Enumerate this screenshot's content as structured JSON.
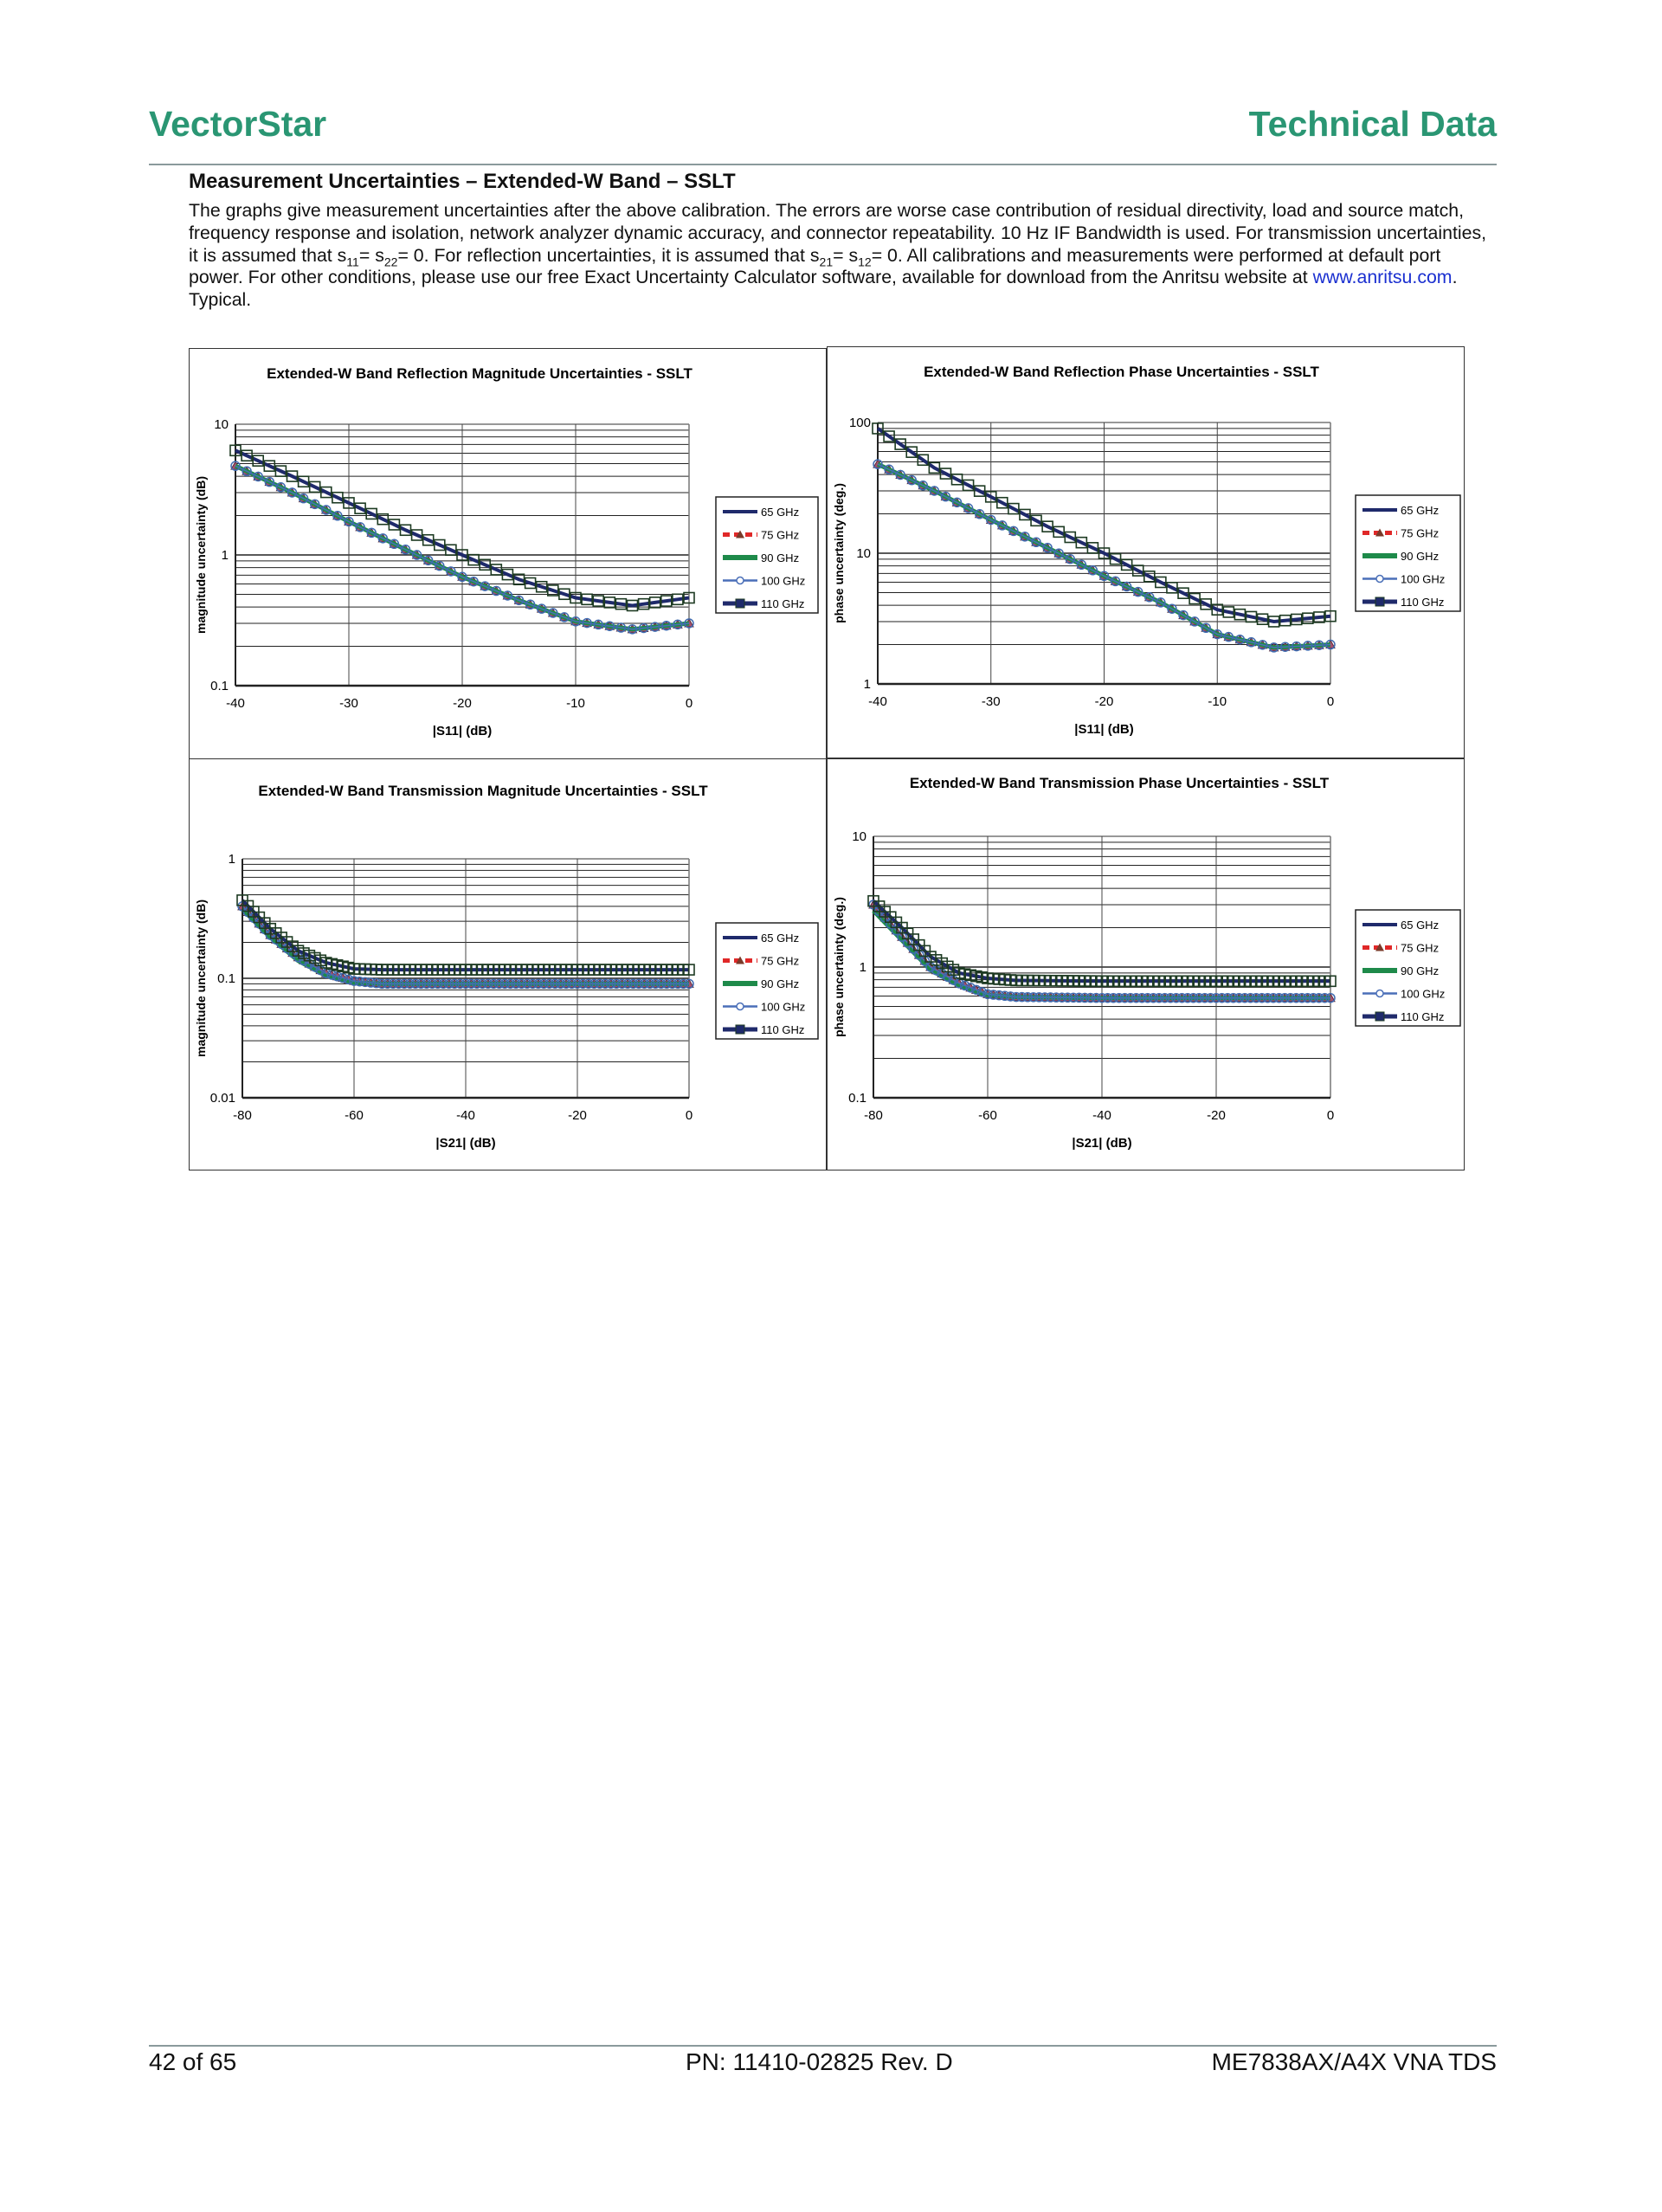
{
  "header": {
    "brand": "VectorStar",
    "section": "Technical Data"
  },
  "section_title": "Measurement Uncertainties – Extended-W Band – SSLT",
  "body": {
    "p1": "The graphs give measurement uncertainties after the above calibration. The errors are worse case contribution of residual directivity, load and source match, frequency response and isolation, network analyzer dynamic accuracy, and connector repeatability. 10 Hz IF Bandwidth is used. For transmission uncertainties, it is assumed that s",
    "sub11": "11",
    "eq1": "= s",
    "sub22": "22",
    "p2": "= 0. For reflection uncertainties, it is assumed that s",
    "sub21": "21",
    "eq2": "= s",
    "sub12": "12",
    "p3": "= 0. All calibrations and measurements were performed at default port power. For other conditions, please use our free Exact Uncertainty Calculator software, available for download from the Anritsu website at ",
    "link": "www.anritsu.com",
    "p4": ". Typical."
  },
  "footer": {
    "page": "42 of 65",
    "pn": "PN: 11410-02825 Rev. D",
    "doc": "ME7838AX/A4X VNA TDS"
  },
  "chart_data": [
    {
      "type": "line",
      "title": "Extended-W Band Reflection Magnitude Uncertainties - SSLT",
      "xlabel": "|S11| (dB)",
      "ylabel": "magnitude uncertainty (dB)",
      "xlim": [
        -40,
        0
      ],
      "ylim": [
        0.1,
        10
      ],
      "yscale": "log",
      "xticks": [
        "-40",
        "-30",
        "-20",
        "-10",
        "0"
      ],
      "yticks": [
        "0.1",
        "1",
        "10"
      ],
      "grid": true,
      "legend": "right",
      "x": [
        -40,
        -35,
        -30,
        -25,
        -20,
        -15,
        -10,
        -5,
        0
      ],
      "series": [
        {
          "name": "65 GHz",
          "color": "#1f2a6b",
          "values": [
            4.8,
            3.0,
            1.8,
            1.1,
            0.68,
            0.45,
            0.31,
            0.27,
            0.3
          ]
        },
        {
          "name": "75 GHz",
          "color": "#e02828",
          "values": [
            4.8,
            3.0,
            1.8,
            1.1,
            0.68,
            0.45,
            0.31,
            0.27,
            0.3
          ]
        },
        {
          "name": "90 GHz",
          "color": "#1e8a4a",
          "values": [
            4.8,
            3.0,
            1.8,
            1.1,
            0.68,
            0.45,
            0.31,
            0.27,
            0.3
          ]
        },
        {
          "name": "100 GHz",
          "color": "#4a6fb8",
          "values": [
            4.8,
            3.0,
            1.8,
            1.1,
            0.68,
            0.45,
            0.31,
            0.27,
            0.3
          ]
        },
        {
          "name": "110 GHz",
          "color": "#1f2a6b",
          "values": [
            6.3,
            4.0,
            2.5,
            1.55,
            1.0,
            0.65,
            0.47,
            0.41,
            0.47
          ]
        }
      ]
    },
    {
      "type": "line",
      "title": "Extended-W Band Reflection Phase Uncertainties - SSLT",
      "xlabel": "|S11| (dB)",
      "ylabel": "phase uncertainty (deg.)",
      "xlim": [
        -40,
        0
      ],
      "ylim": [
        1,
        100
      ],
      "yscale": "log",
      "xticks": [
        "-40",
        "-30",
        "-20",
        "-10",
        "0"
      ],
      "yticks": [
        "1",
        "10",
        "100"
      ],
      "grid": true,
      "legend": "right",
      "x": [
        -40,
        -35,
        -30,
        -25,
        -20,
        -15,
        -10,
        -5,
        0
      ],
      "series": [
        {
          "name": "65 GHz",
          "color": "#1f2a6b",
          "values": [
            48,
            30,
            18,
            11,
            6.7,
            4.2,
            2.4,
            1.9,
            2.0
          ]
        },
        {
          "name": "75 GHz",
          "color": "#e02828",
          "values": [
            48,
            30,
            18,
            11,
            6.7,
            4.2,
            2.4,
            1.9,
            2.0
          ]
        },
        {
          "name": "90 GHz",
          "color": "#1e8a4a",
          "values": [
            48,
            30,
            18,
            11,
            6.7,
            4.2,
            2.4,
            1.9,
            2.0
          ]
        },
        {
          "name": "100 GHz",
          "color": "#4a6fb8",
          "values": [
            48,
            30,
            18,
            11,
            6.7,
            4.2,
            2.4,
            1.9,
            2.0
          ]
        },
        {
          "name": "110 GHz",
          "color": "#1f2a6b",
          "values": [
            90,
            45,
            27,
            16,
            10,
            6,
            3.7,
            3.0,
            3.3
          ]
        }
      ]
    },
    {
      "type": "line",
      "title": "Extended-W Band Transmission Magnitude Uncertainties - SSLT",
      "xlabel": "|S21| (dB)",
      "ylabel": "magnitude uncertainty (dB)",
      "xlim": [
        -80,
        0
      ],
      "ylim": [
        0.01,
        1
      ],
      "yscale": "log",
      "xticks": [
        "-80",
        "-60",
        "-40",
        "-20",
        "0"
      ],
      "yticks": [
        "0.01",
        "0.1",
        "1"
      ],
      "grid": true,
      "legend": "right",
      "x": [
        -80,
        -75,
        -70,
        -65,
        -60,
        -55,
        -40,
        -20,
        0
      ],
      "series": [
        {
          "name": "65 GHz",
          "color": "#1f2a6b",
          "values": [
            0.4,
            0.23,
            0.15,
            0.11,
            0.095,
            0.09,
            0.09,
            0.09,
            0.09
          ]
        },
        {
          "name": "75 GHz",
          "color": "#e02828",
          "values": [
            0.4,
            0.23,
            0.15,
            0.11,
            0.095,
            0.09,
            0.09,
            0.09,
            0.09
          ]
        },
        {
          "name": "90 GHz",
          "color": "#1e8a4a",
          "values": [
            0.38,
            0.22,
            0.14,
            0.105,
            0.092,
            0.09,
            0.09,
            0.09,
            0.09
          ]
        },
        {
          "name": "100 GHz",
          "color": "#4a6fb8",
          "values": [
            0.4,
            0.23,
            0.15,
            0.11,
            0.095,
            0.09,
            0.09,
            0.09,
            0.09
          ]
        },
        {
          "name": "110 GHz",
          "color": "#1f2a6b",
          "values": [
            0.45,
            0.26,
            0.17,
            0.135,
            0.12,
            0.118,
            0.118,
            0.118,
            0.118
          ]
        }
      ]
    },
    {
      "type": "line",
      "title": "Extended-W Band Transmission Phase Uncertainties - SSLT",
      "xlabel": "|S21| (dB)",
      "ylabel": "phase uncertainty (deg.)",
      "xlim": [
        -80,
        0
      ],
      "ylim": [
        0.1,
        10
      ],
      "yscale": "log",
      "xticks": [
        "-80",
        "-60",
        "-40",
        "-20",
        "0"
      ],
      "yticks": [
        "0.1",
        "1",
        "10"
      ],
      "grid": true,
      "legend": "right",
      "x": [
        -80,
        -75,
        -70,
        -65,
        -60,
        -55,
        -40,
        -20,
        0
      ],
      "series": [
        {
          "name": "65 GHz",
          "color": "#1f2a6b",
          "values": [
            3.0,
            1.7,
            1.0,
            0.75,
            0.62,
            0.59,
            0.58,
            0.58,
            0.58
          ]
        },
        {
          "name": "75 GHz",
          "color": "#e02828",
          "values": [
            3.0,
            1.7,
            1.0,
            0.75,
            0.62,
            0.59,
            0.58,
            0.58,
            0.58
          ]
        },
        {
          "name": "90 GHz",
          "color": "#1e8a4a",
          "values": [
            2.7,
            1.6,
            0.95,
            0.72,
            0.61,
            0.59,
            0.58,
            0.58,
            0.58
          ]
        },
        {
          "name": "100 GHz",
          "color": "#4a6fb8",
          "values": [
            3.0,
            1.7,
            1.0,
            0.75,
            0.62,
            0.59,
            0.58,
            0.58,
            0.58
          ]
        },
        {
          "name": "110 GHz",
          "color": "#1f2a6b",
          "values": [
            3.2,
            2.0,
            1.2,
            0.9,
            0.82,
            0.79,
            0.78,
            0.78,
            0.78
          ]
        }
      ]
    }
  ]
}
